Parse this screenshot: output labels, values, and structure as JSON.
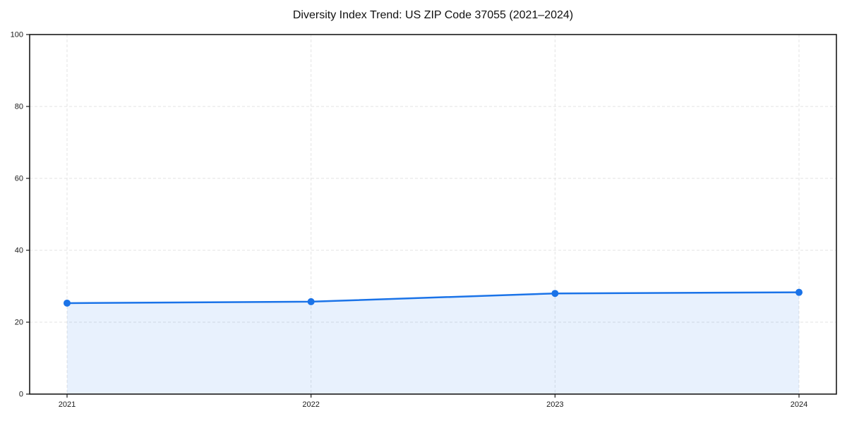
{
  "chart_data": {
    "type": "area",
    "title": "Diversity Index Trend: US ZIP Code 37055 (2021–2024)",
    "categories": [
      "2021",
      "2022",
      "2023",
      "2024"
    ],
    "series": [
      {
        "name": "Diversity Index",
        "values": [
          25.3,
          25.7,
          28.0,
          28.3
        ]
      }
    ],
    "xlabel": "",
    "ylabel": "",
    "ylim": [
      0,
      100
    ],
    "yticks": [
      0,
      20,
      40,
      60,
      80,
      100
    ],
    "grid": true,
    "grid_style": "dashed",
    "legend_position": "none",
    "line_color": "#1a73e8",
    "fill_color": "rgba(26,115,232,0.10)",
    "grid_color": "#e3e3e3",
    "axis_color": "#1a1a1a",
    "text_color": "#1a1a1a",
    "background": "#ffffff"
  }
}
